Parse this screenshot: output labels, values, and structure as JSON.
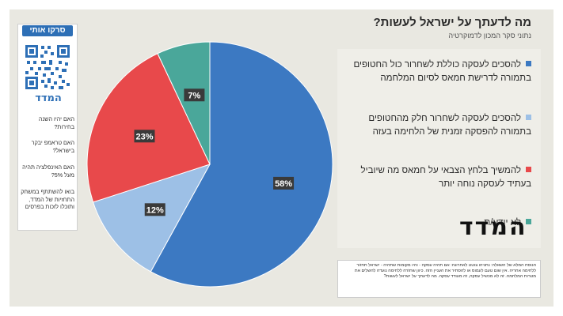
{
  "header": {
    "title": "מה לדעתך על ישראל לעשות?",
    "subtitle": "נתוני סקר המכון לדמוקרטיה"
  },
  "colors": {
    "blue": "#3c79c2",
    "light_blue": "#9dc0e6",
    "red": "#e8494b",
    "teal": "#4aa79a",
    "card_bg": "#e9e8e1"
  },
  "legend": [
    {
      "label": "להסכים לעסקה כוללת לשחרור כול החטופים בתמורה לדרישת חמאס לסיום המלחמה",
      "color": "#3c79c2"
    },
    {
      "label": "להסכים לעסקה לשחרור חלק מהחטופים בתמורה להפסקה זמנית של הלחימה בעזה",
      "color": "#9dc0e6"
    },
    {
      "label": "להמשיך בלחץ הצבאי על חמאס מה שיוביל בעתיד לעסקה נוחה יותר",
      "color": "#e8494b"
    },
    {
      "label": "לא יודע/ת",
      "color": "#4aa79a"
    }
  ],
  "logo": {
    "main": "המדד"
  },
  "note": {
    "text": "הנוסח המלא של השאלה: נתניהו צוטט לאחרונה: אם תהיה עסקה - והיו מקומות שתהיה - ישראל תחזור ללחימה אחריה. אין שום טעם לעמוס או להסתיר את העניין הזה. כיוון שחזרה ללחימה נועדה להשלים את מטרות המלחמה. זה לא מכשיל עסקה, זה מעודד עסקה. מה לדעתך על ישראל לעשות?"
  },
  "side_panel": {
    "scan_label": "סרקו אותי",
    "qr_logo": "המדד",
    "questions": [
      "האם יהיו השנה בחירות?",
      "האם טראמפ יבקר בישראל?",
      "האם האינפלציה תהיה מעל 5%?",
      "בואו להשתתף במשחק התחזיות של המדד, ותוכלו לזכות בפרסים"
    ]
  },
  "chart_data": {
    "type": "pie",
    "title": "מה לדעתך על ישראל לעשות?",
    "start_angle_deg": 0,
    "direction": "clockwise",
    "slices": [
      {
        "label": "להסכים לעסקה כוללת לשחרור כול החטופים בתמורה לדרישת חמאס לסיום המלחמה",
        "value": 58,
        "display": "58%",
        "color": "#3c79c2"
      },
      {
        "label": "להסכים לעסקה לשחרור חלק מהחטופים בתמורה להפסקה זמנית של הלחימה בעזה",
        "value": 12,
        "display": "12%",
        "color": "#9dc0e6"
      },
      {
        "label": "להמשיך בלחץ הצבאי על חמאס מה שיוביל בעתיד לעסקה נוחה יותר",
        "value": 23,
        "display": "23%",
        "color": "#e8494b"
      },
      {
        "label": "לא יודע/ת",
        "value": 7,
        "display": "7%",
        "color": "#4aa79a"
      }
    ]
  }
}
